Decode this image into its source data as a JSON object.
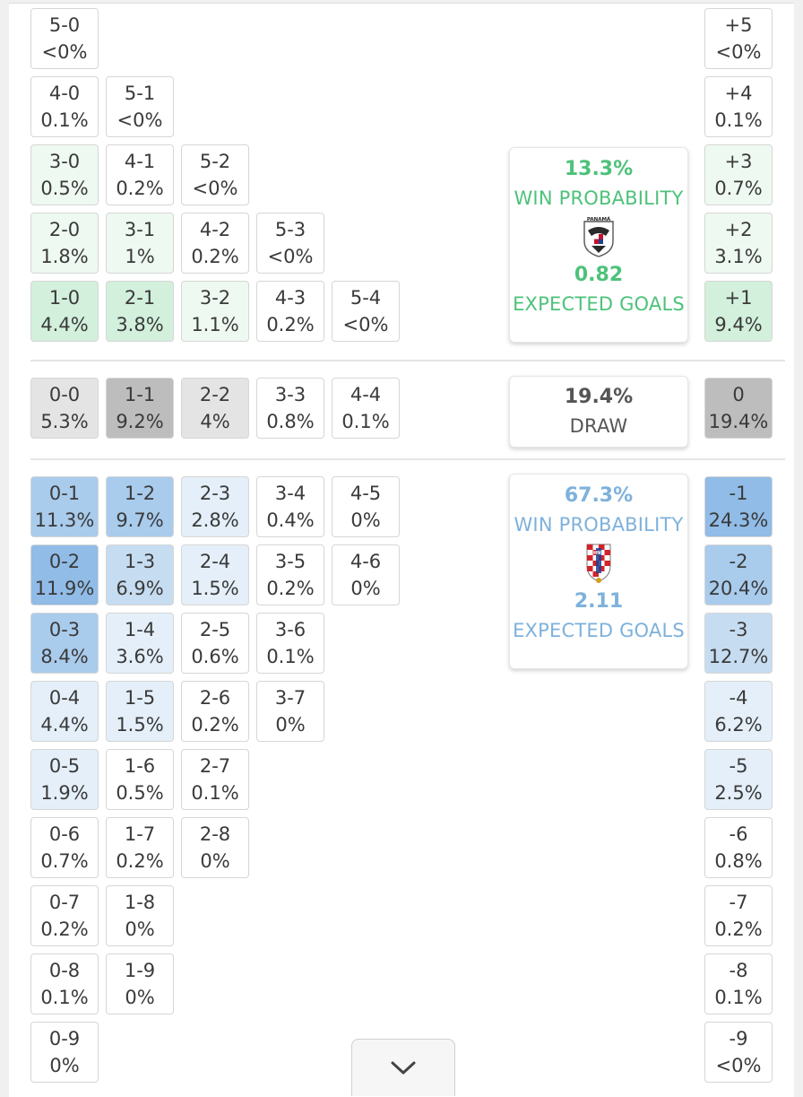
{
  "home": {
    "win_probability": "13.3%",
    "win_label": "WIN PROBABILITY",
    "expected_goals": "0.82",
    "xg_label": "EXPECTED GOALS",
    "crest_text": "PANAMÁ",
    "color": "#4dc27a"
  },
  "draw": {
    "probability": "19.4%",
    "label": "DRAW"
  },
  "away": {
    "win_probability": "67.3%",
    "win_label": "WIN PROBABILITY",
    "expected_goals": "2.11",
    "xg_label": "EXPECTED GOALS",
    "crest_text": "HNS",
    "color": "#7eb1db"
  },
  "score_cells": [
    {
      "score": "5-0",
      "prob": "<0%",
      "row": 0,
      "col": 0,
      "level": "h0"
    },
    {
      "score": "4-0",
      "prob": "0.1%",
      "row": 1,
      "col": 0,
      "level": "h0"
    },
    {
      "score": "5-1",
      "prob": "<0%",
      "row": 1,
      "col": 1,
      "level": "h0"
    },
    {
      "score": "3-0",
      "prob": "0.5%",
      "row": 2,
      "col": 0,
      "level": "h1"
    },
    {
      "score": "4-1",
      "prob": "0.2%",
      "row": 2,
      "col": 1,
      "level": "h0"
    },
    {
      "score": "5-2",
      "prob": "<0%",
      "row": 2,
      "col": 2,
      "level": "h0"
    },
    {
      "score": "2-0",
      "prob": "1.8%",
      "row": 3,
      "col": 0,
      "level": "h1"
    },
    {
      "score": "3-1",
      "prob": "1%",
      "row": 3,
      "col": 1,
      "level": "h1"
    },
    {
      "score": "4-2",
      "prob": "0.2%",
      "row": 3,
      "col": 2,
      "level": "h0"
    },
    {
      "score": "5-3",
      "prob": "<0%",
      "row": 3,
      "col": 3,
      "level": "h0"
    },
    {
      "score": "1-0",
      "prob": "4.4%",
      "row": 4,
      "col": 0,
      "level": "h2"
    },
    {
      "score": "2-1",
      "prob": "3.8%",
      "row": 4,
      "col": 1,
      "level": "h2"
    },
    {
      "score": "3-2",
      "prob": "1.1%",
      "row": 4,
      "col": 2,
      "level": "h1"
    },
    {
      "score": "4-3",
      "prob": "0.2%",
      "row": 4,
      "col": 3,
      "level": "h0"
    },
    {
      "score": "5-4",
      "prob": "<0%",
      "row": 4,
      "col": 4,
      "level": "h0"
    },
    {
      "score": "0-0",
      "prob": "5.3%",
      "row": 5,
      "col": 0,
      "level": "d1"
    },
    {
      "score": "1-1",
      "prob": "9.2%",
      "row": 5,
      "col": 1,
      "level": "d2"
    },
    {
      "score": "2-2",
      "prob": "4%",
      "row": 5,
      "col": 2,
      "level": "d1"
    },
    {
      "score": "3-3",
      "prob": "0.8%",
      "row": 5,
      "col": 3,
      "level": "d0"
    },
    {
      "score": "4-4",
      "prob": "0.1%",
      "row": 5,
      "col": 4,
      "level": "d0"
    },
    {
      "score": "0-1",
      "prob": "11.3%",
      "row": 6,
      "col": 0,
      "level": "a3"
    },
    {
      "score": "1-2",
      "prob": "9.7%",
      "row": 6,
      "col": 1,
      "level": "a3"
    },
    {
      "score": "2-3",
      "prob": "2.8%",
      "row": 6,
      "col": 2,
      "level": "a1"
    },
    {
      "score": "3-4",
      "prob": "0.4%",
      "row": 6,
      "col": 3,
      "level": "a0"
    },
    {
      "score": "4-5",
      "prob": "0%",
      "row": 6,
      "col": 4,
      "level": "a0"
    },
    {
      "score": "0-2",
      "prob": "11.9%",
      "row": 7,
      "col": 0,
      "level": "a4"
    },
    {
      "score": "1-3",
      "prob": "6.9%",
      "row": 7,
      "col": 1,
      "level": "a2"
    },
    {
      "score": "2-4",
      "prob": "1.5%",
      "row": 7,
      "col": 2,
      "level": "a1"
    },
    {
      "score": "3-5",
      "prob": "0.2%",
      "row": 7,
      "col": 3,
      "level": "a0"
    },
    {
      "score": "4-6",
      "prob": "0%",
      "row": 7,
      "col": 4,
      "level": "a0"
    },
    {
      "score": "0-3",
      "prob": "8.4%",
      "row": 8,
      "col": 0,
      "level": "a3"
    },
    {
      "score": "1-4",
      "prob": "3.6%",
      "row": 8,
      "col": 1,
      "level": "a1"
    },
    {
      "score": "2-5",
      "prob": "0.6%",
      "row": 8,
      "col": 2,
      "level": "a0"
    },
    {
      "score": "3-6",
      "prob": "0.1%",
      "row": 8,
      "col": 3,
      "level": "a0"
    },
    {
      "score": "0-4",
      "prob": "4.4%",
      "row": 9,
      "col": 0,
      "level": "a1"
    },
    {
      "score": "1-5",
      "prob": "1.5%",
      "row": 9,
      "col": 1,
      "level": "a1"
    },
    {
      "score": "2-6",
      "prob": "0.2%",
      "row": 9,
      "col": 2,
      "level": "a0"
    },
    {
      "score": "3-7",
      "prob": "0%",
      "row": 9,
      "col": 3,
      "level": "a0"
    },
    {
      "score": "0-5",
      "prob": "1.9%",
      "row": 10,
      "col": 0,
      "level": "a1"
    },
    {
      "score": "1-6",
      "prob": "0.5%",
      "row": 10,
      "col": 1,
      "level": "a0"
    },
    {
      "score": "2-7",
      "prob": "0.1%",
      "row": 10,
      "col": 2,
      "level": "a0"
    },
    {
      "score": "0-6",
      "prob": "0.7%",
      "row": 11,
      "col": 0,
      "level": "a0"
    },
    {
      "score": "1-7",
      "prob": "0.2%",
      "row": 11,
      "col": 1,
      "level": "a0"
    },
    {
      "score": "2-8",
      "prob": "0%",
      "row": 11,
      "col": 2,
      "level": "a0"
    },
    {
      "score": "0-7",
      "prob": "0.2%",
      "row": 12,
      "col": 0,
      "level": "a0"
    },
    {
      "score": "1-8",
      "prob": "0%",
      "row": 12,
      "col": 1,
      "level": "a0"
    },
    {
      "score": "0-8",
      "prob": "0.1%",
      "row": 13,
      "col": 0,
      "level": "a0"
    },
    {
      "score": "1-9",
      "prob": "0%",
      "row": 13,
      "col": 1,
      "level": "a0"
    },
    {
      "score": "0-9",
      "prob": "0%",
      "row": 14,
      "col": 0,
      "level": "a0"
    }
  ],
  "margin_cells": [
    {
      "margin": "+5",
      "prob": "<0%",
      "row": 0,
      "level": "h0"
    },
    {
      "margin": "+4",
      "prob": "0.1%",
      "row": 1,
      "level": "h0"
    },
    {
      "margin": "+3",
      "prob": "0.7%",
      "row": 2,
      "level": "h1"
    },
    {
      "margin": "+2",
      "prob": "3.1%",
      "row": 3,
      "level": "h1"
    },
    {
      "margin": "+1",
      "prob": "9.4%",
      "row": 4,
      "level": "h2"
    },
    {
      "margin": "0",
      "prob": "19.4%",
      "row": 5,
      "level": "d2"
    },
    {
      "margin": "-1",
      "prob": "24.3%",
      "row": 6,
      "level": "a4"
    },
    {
      "margin": "-2",
      "prob": "20.4%",
      "row": 7,
      "level": "a3"
    },
    {
      "margin": "-3",
      "prob": "12.7%",
      "row": 8,
      "level": "a2"
    },
    {
      "margin": "-4",
      "prob": "6.2%",
      "row": 9,
      "level": "a1"
    },
    {
      "margin": "-5",
      "prob": "2.5%",
      "row": 10,
      "level": "a1"
    },
    {
      "margin": "-6",
      "prob": "0.8%",
      "row": 11,
      "level": "a0"
    },
    {
      "margin": "-7",
      "prob": "0.2%",
      "row": 12,
      "level": "a0"
    },
    {
      "margin": "-8",
      "prob": "0.1%",
      "row": 13,
      "level": "a0"
    },
    {
      "margin": "-9",
      "prob": "<0%",
      "row": 14,
      "level": "a0"
    }
  ],
  "shade_colors": {
    "h0": "#ffffff",
    "h1": "#eef9f1",
    "h2": "#d2f0dc",
    "d0": "#ffffff",
    "d1": "#e4e4e4",
    "d2": "#bdbdbd",
    "a0": "#ffffff",
    "a1": "#e4eff9",
    "a2": "#c6dcf1",
    "a3": "#a9cbec",
    "a4": "#90bce7"
  },
  "expand_button": {
    "icon": "chevron-down-icon"
  }
}
